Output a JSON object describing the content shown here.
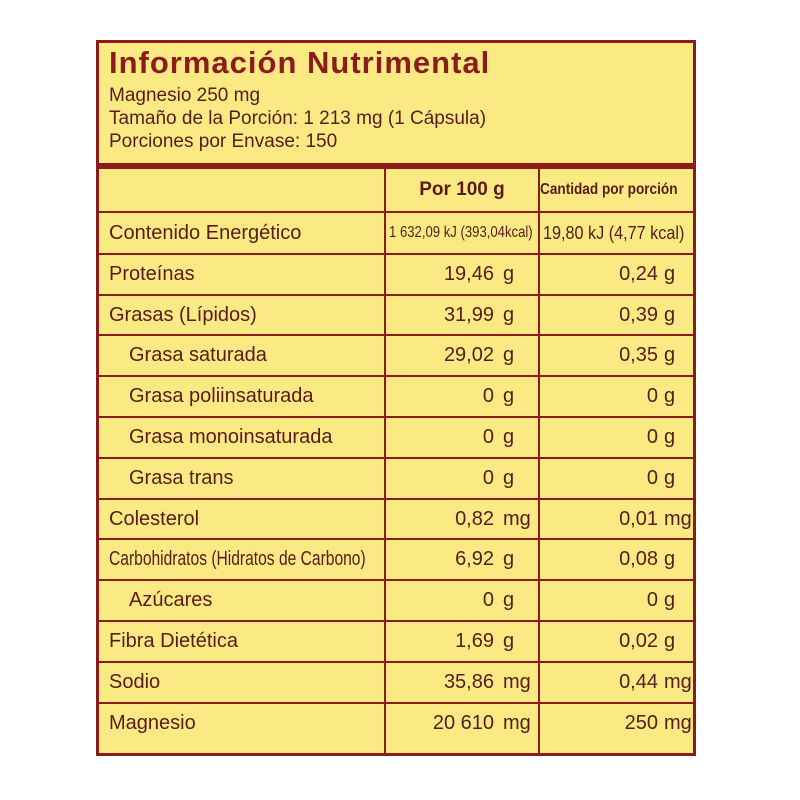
{
  "title": "Información Nutrimental",
  "subtitle_lines": [
    "Magnesio 250 mg",
    "Tamaño de la Porción: 1 213 mg (1 Cápsula)",
    "Porciones por Envase: 150"
  ],
  "table": {
    "headers": [
      "",
      "Por 100 g",
      "Cantidad por porción"
    ],
    "rows": [
      {
        "name": "Contenido Energético",
        "per100": "1 632,09 kJ (393,04kcal)",
        "per100_unit": "",
        "perPortion": "19,80 kJ (4,77 kcal)",
        "perPortion_unit": ""
      },
      {
        "name": "Proteínas",
        "per100": "19,46",
        "per100_unit": "g",
        "perPortion": "0,24",
        "perPortion_unit": "g"
      },
      {
        "name": "Grasas (Lípidos)",
        "per100": "31,99",
        "per100_unit": "g",
        "perPortion": "0,39",
        "perPortion_unit": "g"
      },
      {
        "name": "Grasa saturada",
        "per100": "29,02",
        "per100_unit": "g",
        "perPortion": "0,35",
        "perPortion_unit": "g"
      },
      {
        "name": "Grasa poliinsaturada",
        "per100": "0",
        "per100_unit": "g",
        "perPortion": "0",
        "perPortion_unit": "g"
      },
      {
        "name": "Grasa monoinsaturada",
        "per100": "0",
        "per100_unit": "g",
        "perPortion": "0",
        "perPortion_unit": "g"
      },
      {
        "name": "Grasa trans",
        "per100": "0",
        "per100_unit": "g",
        "perPortion": "0",
        "perPortion_unit": "g"
      },
      {
        "name": "Colesterol",
        "per100": "0,82",
        "per100_unit": "mg",
        "perPortion": "0,01",
        "perPortion_unit": "mg"
      },
      {
        "name": "Carbohidratos (Hidratos de Carbono)",
        "per100": "6,92",
        "per100_unit": "g",
        "perPortion": "0,08",
        "perPortion_unit": "g"
      },
      {
        "name": "Azúcares",
        "per100": "0",
        "per100_unit": "g",
        "perPortion": "0",
        "perPortion_unit": "g"
      },
      {
        "name": "Fibra Dietética",
        "per100": "1,69",
        "per100_unit": "g",
        "perPortion": "0,02",
        "perPortion_unit": "g"
      },
      {
        "name": "Sodio",
        "per100": "35,86",
        "per100_unit": "mg",
        "perPortion": "0,44",
        "perPortion_unit": "mg"
      },
      {
        "name": "Magnesio",
        "per100": "20 610",
        "per100_unit": "mg",
        "perPortion": "250",
        "perPortion_unit": "mg"
      }
    ]
  },
  "colors": {
    "background": "#fbea83",
    "border": "#8a1c1c",
    "text": "#5a1a1a"
  }
}
